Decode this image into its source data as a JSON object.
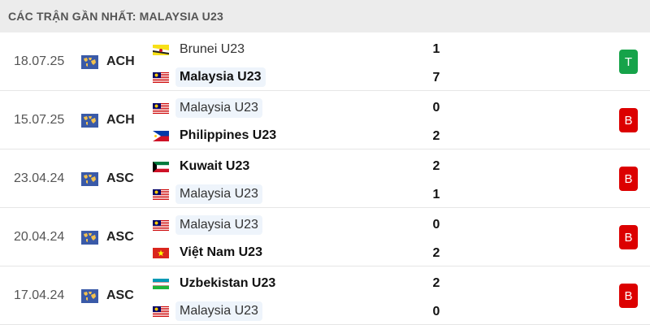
{
  "title": "CÁC TRẬN GẦN NHẤT: MALAYSIA U23",
  "colors": {
    "win": "#16a34a",
    "loss": "#dc0000",
    "highlight": "#eef4fb"
  },
  "matches": [
    {
      "date": "18.07.25",
      "competition": "ACH",
      "comp_icon": "world-map-icon",
      "home": {
        "name": "Brunei U23",
        "flag": "brunei",
        "score": "1",
        "bold": false,
        "highlight": false
      },
      "away": {
        "name": "Malaysia U23",
        "flag": "malaysia",
        "score": "7",
        "bold": true,
        "highlight": true
      },
      "result": "T"
    },
    {
      "date": "15.07.25",
      "competition": "ACH",
      "comp_icon": "world-map-icon",
      "home": {
        "name": "Malaysia U23",
        "flag": "malaysia",
        "score": "0",
        "bold": false,
        "highlight": true
      },
      "away": {
        "name": "Philippines U23",
        "flag": "philippines",
        "score": "2",
        "bold": true,
        "highlight": false
      },
      "result": "B"
    },
    {
      "date": "23.04.24",
      "competition": "ASC",
      "comp_icon": "world-map-icon",
      "home": {
        "name": "Kuwait U23",
        "flag": "kuwait",
        "score": "2",
        "bold": true,
        "highlight": false
      },
      "away": {
        "name": "Malaysia U23",
        "flag": "malaysia",
        "score": "1",
        "bold": false,
        "highlight": true
      },
      "result": "B"
    },
    {
      "date": "20.04.24",
      "competition": "ASC",
      "comp_icon": "world-map-icon",
      "home": {
        "name": "Malaysia U23",
        "flag": "malaysia",
        "score": "0",
        "bold": false,
        "highlight": true
      },
      "away": {
        "name": "Việt Nam U23",
        "flag": "vietnam",
        "score": "2",
        "bold": true,
        "highlight": false
      },
      "result": "B"
    },
    {
      "date": "17.04.24",
      "competition": "ASC",
      "comp_icon": "world-map-icon",
      "home": {
        "name": "Uzbekistan U23",
        "flag": "uzbekistan",
        "score": "2",
        "bold": true,
        "highlight": false
      },
      "away": {
        "name": "Malaysia U23",
        "flag": "malaysia",
        "score": "0",
        "bold": false,
        "highlight": true
      },
      "result": "B"
    }
  ]
}
